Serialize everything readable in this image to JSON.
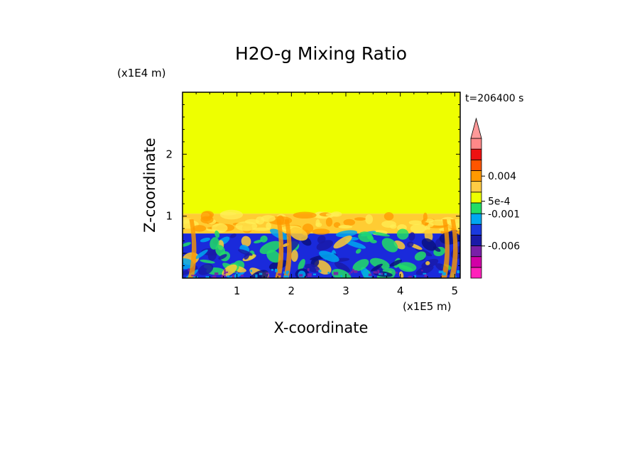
{
  "chart_data": {
    "type": "heatmap",
    "title": "H2O-g Mixing Ratio",
    "xlabel": "X-coordinate",
    "ylabel": "Z-coordinate",
    "x_scale_label": "(x1E5 m)",
    "y_scale_label": "(x1E4 m)",
    "time_label": "t=206400 s",
    "xlim": [
      0,
      5.1
    ],
    "ylim": [
      0,
      3.0
    ],
    "x_ticks": [
      "1",
      "2",
      "3",
      "4",
      "5"
    ],
    "x_tick_values": [
      1,
      2,
      3,
      4,
      5
    ],
    "y_ticks": [
      "1",
      "2"
    ],
    "y_tick_values": [
      1,
      2
    ],
    "layers": [
      {
        "name": "upper",
        "z_range": [
          1.04,
          3.0
        ],
        "color": "#eeff00"
      },
      {
        "name": "transition",
        "z_range": [
          0.72,
          1.04
        ],
        "color": "#ffcc33"
      },
      {
        "name": "boundary",
        "z_range": [
          0.0,
          0.72
        ],
        "color": "#1a2adb"
      }
    ],
    "colorbar": {
      "colors": [
        "#ff22bb",
        "#d100a6",
        "#7a1fa8",
        "#1a1aa8",
        "#1a3adf",
        "#00a8f0",
        "#22dd66",
        "#eeff00",
        "#ffcc44",
        "#ff9900",
        "#ff5500",
        "#ee1111",
        "#ff8888"
      ],
      "labels": [
        "0.004",
        "5e-4",
        "-0.001",
        "-0.006"
      ],
      "label_colorbar_fraction": [
        0.73,
        0.55,
        0.46,
        0.23
      ]
    }
  }
}
